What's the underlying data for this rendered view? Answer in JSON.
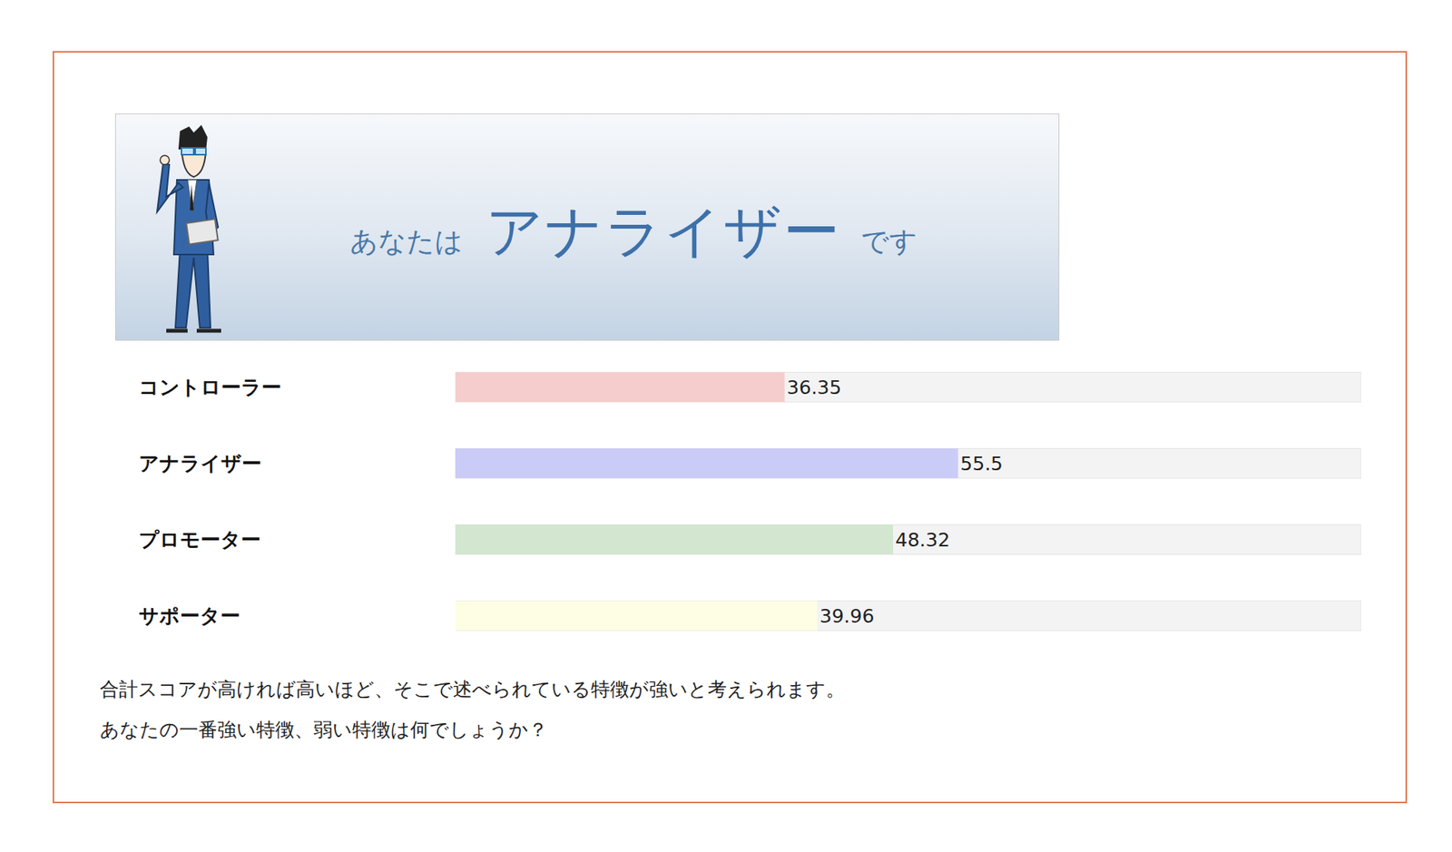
{
  "banner": {
    "prefix": "あなたは",
    "type": "アナライザー",
    "suffix": "です"
  },
  "chart_data": {
    "type": "bar",
    "orientation": "horizontal",
    "categories": [
      "コントローラー",
      "アナライザー",
      "プロモーター",
      "サポーター"
    ],
    "values": [
      36.35,
      55.5,
      48.32,
      39.96
    ],
    "colors": [
      "#f5cdcd",
      "#cbcbf8",
      "#d3e6d0",
      "#fefee4"
    ],
    "xlim": [
      0,
      100
    ],
    "xticks": [],
    "grid": false,
    "data_labels": true,
    "tick_labels": "y"
  },
  "notes": [
    "合計スコアが高ければ高いほど、そこで述べられている特徴が強いと考えられます。",
    "あなたの一番強い特徴、弱い特徴は何でしょうか？"
  ]
}
